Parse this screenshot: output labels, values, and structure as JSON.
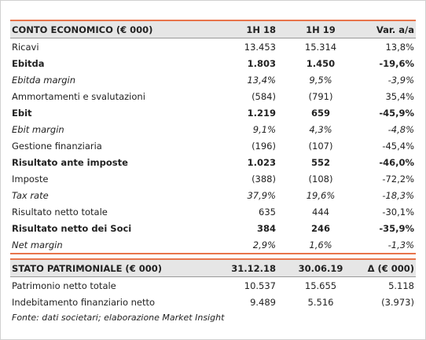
{
  "income_statement": {
    "header": [
      "CONTO ECONOMICO (€ 000)",
      "1H 18",
      "1H 19",
      "Var. a/a"
    ],
    "rows": [
      [
        "Ricavi",
        "13.453",
        "15.314",
        "13,8%"
      ],
      [
        "Ebitda",
        "1.803",
        "1.450",
        "-19,6%"
      ],
      [
        "Ebitda margin",
        "13,4%",
        "9,5%",
        "-3,9%"
      ],
      [
        "Ammortamenti e svalutazioni",
        "(584)",
        "(791)",
        "35,4%"
      ],
      [
        "Ebit",
        "1.219",
        "659",
        "-45,9%"
      ],
      [
        "Ebit margin",
        "9,1%",
        "4,3%",
        "-4,8%"
      ],
      [
        "Gestione finanziaria",
        "(196)",
        "(107)",
        "-45,4%"
      ],
      [
        "Risultato ante imposte",
        "1.023",
        "552",
        "-46,0%"
      ],
      [
        "Imposte",
        "(388)",
        "(108)",
        "-72,2%"
      ],
      [
        "Tax rate",
        "37,9%",
        "19,6%",
        "-18,3%"
      ],
      [
        "Risultato netto totale",
        "635",
        "444",
        "-30,1%"
      ],
      [
        "Risultato netto dei Soci",
        "384",
        "246",
        "-35,9%"
      ],
      [
        "Net margin",
        "2,9%",
        "1,6%",
        "-1,3%"
      ]
    ]
  },
  "balance_sheet": {
    "header": [
      "STATO PATRIMONIALE (€ 000)",
      "31.12.18",
      "30.06.19",
      "Δ (€ 000)"
    ],
    "rows": [
      [
        "Patrimonio netto totale",
        "10.537",
        "15.655",
        "5.118"
      ],
      [
        "Indebitamento finanziario netto",
        "9.489",
        "5.516",
        "(3.973)"
      ]
    ]
  },
  "source": "Fonte: dati societari; elaborazione Market Insight"
}
